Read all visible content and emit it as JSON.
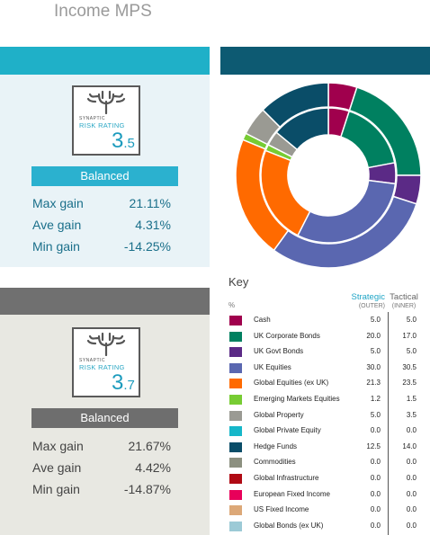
{
  "title": "Income MPS",
  "profiles": [
    {
      "badge": {
        "line1": "SYNAPTIC",
        "line2": "RISK RATING",
        "whole": "3",
        "decimal": ".5"
      },
      "label": "Balanced",
      "label_color": "#2bb1cf",
      "stats": [
        {
          "name": "Max gain",
          "value": "21.11%"
        },
        {
          "name": "Ave gain",
          "value": "4.31%"
        },
        {
          "name": "Min gain",
          "value": "-14.25%"
        }
      ]
    },
    {
      "badge": {
        "line1": "SYNAPTIC",
        "line2": "RISK RATING",
        "whole": "3",
        "decimal": ".7"
      },
      "label": "Balanced",
      "label_color": "#6e6e6e",
      "stats": [
        {
          "name": "Max gain",
          "value": "21.67%"
        },
        {
          "name": "Ave gain",
          "value": "4.42%"
        },
        {
          "name": "Min gain",
          "value": "-14.87%"
        }
      ]
    }
  ],
  "key": {
    "title": "Key",
    "percent_label": "%",
    "strategic_label": "Strategic",
    "outer_label": "(OUTER)",
    "tactical_label": "Tactical",
    "inner_label": "(INNER)",
    "rows": [
      {
        "name": "Cash",
        "strategic": "5.0",
        "tactical": "5.0",
        "color": "#a0004d"
      },
      {
        "name": "UK Corporate Bonds",
        "strategic": "20.0",
        "tactical": "17.0",
        "color": "#008060"
      },
      {
        "name": "UK Govt Bonds",
        "strategic": "5.0",
        "tactical": "5.0",
        "color": "#5b2a86"
      },
      {
        "name": "UK Equities",
        "strategic": "30.0",
        "tactical": "30.5",
        "color": "#5a67b0"
      },
      {
        "name": "Global Equities (ex UK)",
        "strategic": "21.3",
        "tactical": "23.5",
        "color": "#ff6a00"
      },
      {
        "name": "Emerging Markets Equities",
        "strategic": "1.2",
        "tactical": "1.5",
        "color": "#77cc33"
      },
      {
        "name": "Global Property",
        "strategic": "5.0",
        "tactical": "3.5",
        "color": "#9a9a93"
      },
      {
        "name": "Global Private Equity",
        "strategic": "0.0",
        "tactical": "0.0",
        "color": "#16b7c9"
      },
      {
        "name": "Hedge Funds",
        "strategic": "12.5",
        "tactical": "14.0",
        "color": "#0a4d68"
      },
      {
        "name": "Commodities",
        "strategic": "0.0",
        "tactical": "0.0",
        "color": "#8c9080"
      },
      {
        "name": "Global Infrastructure",
        "strategic": "0.0",
        "tactical": "0.0",
        "color": "#b00a14"
      },
      {
        "name": "European Fixed Income",
        "strategic": "0.0",
        "tactical": "0.0",
        "color": "#e8005a"
      },
      {
        "name": "US Fixed Income",
        "strategic": "0.0",
        "tactical": "0.0",
        "color": "#dca878"
      },
      {
        "name": "Global Bonds (ex UK)",
        "strategic": "0.0",
        "tactical": "0.0",
        "color": "#9ccad6"
      }
    ]
  },
  "chart_data": {
    "type": "pie",
    "series": [
      {
        "values": [
          5.0,
          20.0,
          5.0,
          30.0,
          21.3,
          1.2,
          5.0,
          0.0,
          12.5,
          0.0,
          0.0,
          0.0,
          0.0,
          0.0
        ]
      },
      {
        "values": [
          5.0,
          17.0,
          5.0,
          30.5,
          23.5,
          1.5,
          3.5,
          0.0,
          14.0,
          0.0,
          0.0,
          0.0,
          0.0,
          0.0
        ]
      }
    ]
  }
}
